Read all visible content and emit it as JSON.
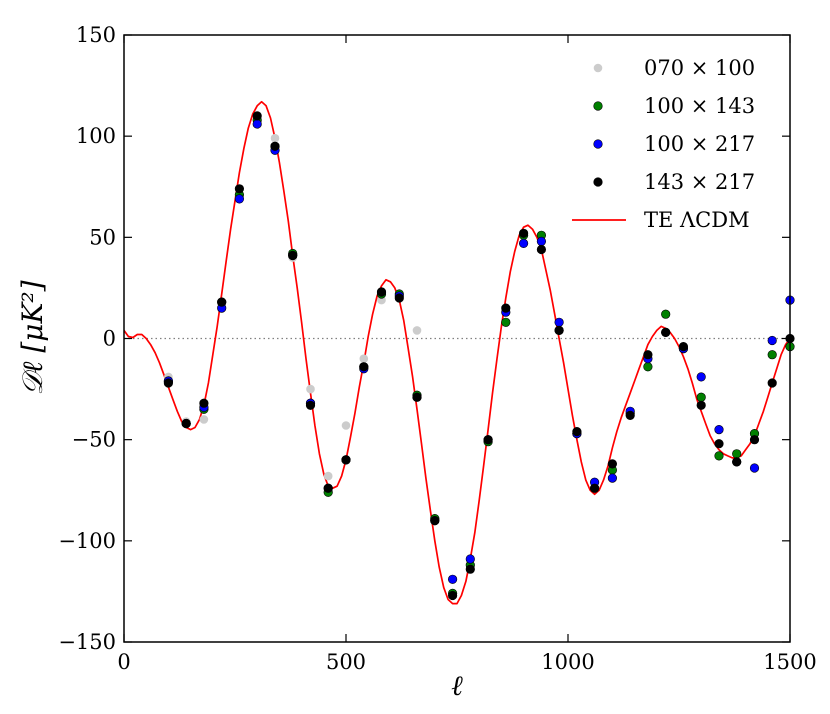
{
  "chart_data": {
    "type": "scatter",
    "xlabel": "ℓ",
    "ylabel": "𝒟ℓ [μK²]",
    "xlim": [
      0,
      1500
    ],
    "ylim": [
      -150,
      150
    ],
    "x_ticks": [
      {
        "value": 0,
        "label": "0"
      },
      {
        "value": 500,
        "label": "500"
      },
      {
        "value": 1000,
        "label": "1000"
      },
      {
        "value": 1500,
        "label": "1500"
      }
    ],
    "y_ticks": [
      {
        "value": 150,
        "label": "150"
      },
      {
        "value": 100,
        "label": "100"
      },
      {
        "value": 50,
        "label": "50"
      },
      {
        "value": 0,
        "label": "0"
      },
      {
        "value": -50,
        "label": "−50"
      },
      {
        "value": -100,
        "label": "−100"
      },
      {
        "value": -150,
        "label": "−150"
      }
    ],
    "zero_line": true,
    "legend_position": "top-right",
    "series": [
      {
        "name": "070 × 100",
        "color": "#cccccc",
        "marker": "dot",
        "points": [
          [
            100,
            -19
          ],
          [
            140,
            -41
          ],
          [
            180,
            -40
          ],
          [
            220,
            16
          ],
          [
            260,
            70
          ],
          [
            300,
            108
          ],
          [
            340,
            99
          ],
          [
            380,
            40
          ],
          [
            420,
            -25
          ],
          [
            460,
            -68
          ],
          [
            500,
            -43
          ],
          [
            540,
            -10
          ],
          [
            580,
            19
          ],
          [
            620,
            20
          ],
          [
            660,
            4
          ]
        ]
      },
      {
        "name": "100 × 143",
        "color": "#008000",
        "marker": "dot",
        "points": [
          [
            100,
            -21
          ],
          [
            140,
            -42
          ],
          [
            180,
            -35
          ],
          [
            220,
            18
          ],
          [
            260,
            71
          ],
          [
            300,
            108
          ],
          [
            340,
            95
          ],
          [
            380,
            42
          ],
          [
            420,
            -32
          ],
          [
            460,
            -76
          ],
          [
            500,
            -60
          ],
          [
            540,
            -14
          ],
          [
            580,
            22
          ],
          [
            620,
            22
          ],
          [
            660,
            -28
          ],
          [
            700,
            -89
          ],
          [
            740,
            -126
          ],
          [
            780,
            -112
          ],
          [
            820,
            -51
          ],
          [
            860,
            8
          ],
          [
            900,
            51
          ],
          [
            940,
            51
          ],
          [
            980,
            4
          ],
          [
            1020,
            -47
          ],
          [
            1060,
            -74
          ],
          [
            1100,
            -65
          ],
          [
            1140,
            -37
          ],
          [
            1180,
            -14
          ],
          [
            1220,
            12
          ],
          [
            1260,
            -5
          ],
          [
            1300,
            -29
          ],
          [
            1340,
            -58
          ],
          [
            1380,
            -57
          ],
          [
            1420,
            -47
          ],
          [
            1460,
            -8
          ],
          [
            1500,
            -4
          ]
        ]
      },
      {
        "name": "100 × 217",
        "color": "#0000ff",
        "marker": "dot",
        "points": [
          [
            100,
            -21
          ],
          [
            140,
            -42
          ],
          [
            180,
            -34
          ],
          [
            220,
            15
          ],
          [
            260,
            69
          ],
          [
            300,
            106
          ],
          [
            340,
            93
          ],
          [
            380,
            41
          ],
          [
            420,
            -32
          ],
          [
            460,
            -74
          ],
          [
            500,
            -60
          ],
          [
            540,
            -15
          ],
          [
            580,
            23
          ],
          [
            620,
            21
          ],
          [
            660,
            -29
          ],
          [
            700,
            -90
          ],
          [
            740,
            -119
          ],
          [
            780,
            -109
          ],
          [
            820,
            -50
          ],
          [
            860,
            13
          ],
          [
            900,
            47
          ],
          [
            940,
            48
          ],
          [
            980,
            8
          ],
          [
            1020,
            -47
          ],
          [
            1060,
            -71
          ],
          [
            1100,
            -69
          ],
          [
            1140,
            -36
          ],
          [
            1180,
            -10
          ],
          [
            1220,
            3
          ],
          [
            1260,
            -5
          ],
          [
            1300,
            -19
          ],
          [
            1340,
            -45
          ],
          [
            1380,
            -61
          ],
          [
            1420,
            -64
          ],
          [
            1460,
            -1
          ],
          [
            1500,
            19
          ]
        ]
      },
      {
        "name": "143 × 217",
        "color": "#000000",
        "marker": "dot",
        "points": [
          [
            100,
            -22
          ],
          [
            140,
            -42
          ],
          [
            180,
            -32
          ],
          [
            220,
            18
          ],
          [
            260,
            74
          ],
          [
            300,
            110
          ],
          [
            340,
            95
          ],
          [
            380,
            41
          ],
          [
            420,
            -33
          ],
          [
            460,
            -74
          ],
          [
            500,
            -60
          ],
          [
            540,
            -14
          ],
          [
            580,
            23
          ],
          [
            620,
            20
          ],
          [
            660,
            -29
          ],
          [
            700,
            -90
          ],
          [
            740,
            -127
          ],
          [
            780,
            -114
          ],
          [
            820,
            -50
          ],
          [
            860,
            15
          ],
          [
            900,
            52
          ],
          [
            940,
            44
          ],
          [
            980,
            4
          ],
          [
            1020,
            -46
          ],
          [
            1060,
            -74
          ],
          [
            1100,
            -62
          ],
          [
            1140,
            -38
          ],
          [
            1180,
            -8
          ],
          [
            1220,
            3
          ],
          [
            1260,
            -4
          ],
          [
            1300,
            -33
          ],
          [
            1340,
            -52
          ],
          [
            1380,
            -61
          ],
          [
            1420,
            -50
          ],
          [
            1460,
            -22
          ],
          [
            1500,
            0
          ]
        ]
      }
    ],
    "model": {
      "name": "TE ΛCDM",
      "color": "#ff0000",
      "type": "line",
      "points": [
        [
          0,
          4
        ],
        [
          10,
          1
        ],
        [
          20,
          0.5
        ],
        [
          30,
          2
        ],
        [
          40,
          2
        ],
        [
          50,
          0
        ],
        [
          60,
          -3
        ],
        [
          70,
          -7
        ],
        [
          80,
          -12
        ],
        [
          90,
          -18
        ],
        [
          100,
          -24
        ],
        [
          110,
          -30
        ],
        [
          120,
          -36
        ],
        [
          130,
          -41
        ],
        [
          140,
          -44
        ],
        [
          150,
          -45
        ],
        [
          160,
          -44
        ],
        [
          170,
          -40
        ],
        [
          180,
          -33
        ],
        [
          190,
          -22
        ],
        [
          200,
          -8
        ],
        [
          210,
          6
        ],
        [
          220,
          22
        ],
        [
          230,
          38
        ],
        [
          240,
          54
        ],
        [
          250,
          68
        ],
        [
          260,
          82
        ],
        [
          270,
          94
        ],
        [
          280,
          104
        ],
        [
          290,
          111
        ],
        [
          300,
          115
        ],
        [
          310,
          117
        ],
        [
          320,
          115
        ],
        [
          330,
          109
        ],
        [
          340,
          99
        ],
        [
          350,
          87
        ],
        [
          360,
          73
        ],
        [
          370,
          58
        ],
        [
          380,
          41
        ],
        [
          390,
          25
        ],
        [
          400,
          8
        ],
        [
          410,
          -10
        ],
        [
          420,
          -27
        ],
        [
          430,
          -43
        ],
        [
          440,
          -57
        ],
        [
          450,
          -67
        ],
        [
          460,
          -73
        ],
        [
          470,
          -74
        ],
        [
          480,
          -73
        ],
        [
          490,
          -68
        ],
        [
          500,
          -60
        ],
        [
          510,
          -49
        ],
        [
          520,
          -37
        ],
        [
          530,
          -24
        ],
        [
          540,
          -12
        ],
        [
          550,
          1
        ],
        [
          560,
          12
        ],
        [
          570,
          21
        ],
        [
          580,
          26
        ],
        [
          590,
          29
        ],
        [
          600,
          28
        ],
        [
          610,
          25
        ],
        [
          620,
          19
        ],
        [
          630,
          9
        ],
        [
          640,
          -5
        ],
        [
          650,
          -19
        ],
        [
          660,
          -35
        ],
        [
          670,
          -52
        ],
        [
          680,
          -69
        ],
        [
          690,
          -85
        ],
        [
          700,
          -100
        ],
        [
          710,
          -113
        ],
        [
          720,
          -123
        ],
        [
          730,
          -129
        ],
        [
          740,
          -131
        ],
        [
          750,
          -131
        ],
        [
          760,
          -127
        ],
        [
          770,
          -120
        ],
        [
          780,
          -109
        ],
        [
          790,
          -96
        ],
        [
          800,
          -80
        ],
        [
          810,
          -63
        ],
        [
          820,
          -45
        ],
        [
          830,
          -27
        ],
        [
          840,
          -10
        ],
        [
          850,
          6
        ],
        [
          860,
          20
        ],
        [
          870,
          33
        ],
        [
          880,
          43
        ],
        [
          890,
          51
        ],
        [
          900,
          55
        ],
        [
          910,
          56
        ],
        [
          920,
          54
        ],
        [
          930,
          50
        ],
        [
          940,
          44
        ],
        [
          950,
          34
        ],
        [
          960,
          24
        ],
        [
          970,
          12
        ],
        [
          980,
          0
        ],
        [
          990,
          -12
        ],
        [
          1000,
          -25
        ],
        [
          1010,
          -38
        ],
        [
          1020,
          -50
        ],
        [
          1030,
          -61
        ],
        [
          1040,
          -70
        ],
        [
          1050,
          -75
        ],
        [
          1060,
          -77
        ],
        [
          1070,
          -75
        ],
        [
          1080,
          -70
        ],
        [
          1090,
          -63
        ],
        [
          1100,
          -54
        ],
        [
          1110,
          -46
        ],
        [
          1120,
          -39
        ],
        [
          1130,
          -33
        ],
        [
          1140,
          -27
        ],
        [
          1150,
          -21
        ],
        [
          1160,
          -15
        ],
        [
          1170,
          -9
        ],
        [
          1180,
          -3
        ],
        [
          1190,
          1
        ],
        [
          1200,
          4
        ],
        [
          1210,
          6
        ],
        [
          1220,
          5
        ],
        [
          1230,
          3
        ],
        [
          1240,
          0
        ],
        [
          1250,
          -4
        ],
        [
          1260,
          -9
        ],
        [
          1270,
          -15
        ],
        [
          1280,
          -22
        ],
        [
          1290,
          -30
        ],
        [
          1300,
          -36
        ],
        [
          1310,
          -42
        ],
        [
          1320,
          -48
        ],
        [
          1330,
          -52
        ],
        [
          1340,
          -55
        ],
        [
          1350,
          -57
        ],
        [
          1360,
          -58
        ],
        [
          1370,
          -59
        ],
        [
          1380,
          -59
        ],
        [
          1390,
          -58
        ],
        [
          1400,
          -55
        ],
        [
          1410,
          -52
        ],
        [
          1420,
          -48
        ],
        [
          1430,
          -42
        ],
        [
          1440,
          -36
        ],
        [
          1450,
          -29
        ],
        [
          1460,
          -22
        ],
        [
          1470,
          -15
        ],
        [
          1480,
          -8
        ],
        [
          1490,
          -3
        ],
        [
          1500,
          0
        ]
      ]
    }
  }
}
